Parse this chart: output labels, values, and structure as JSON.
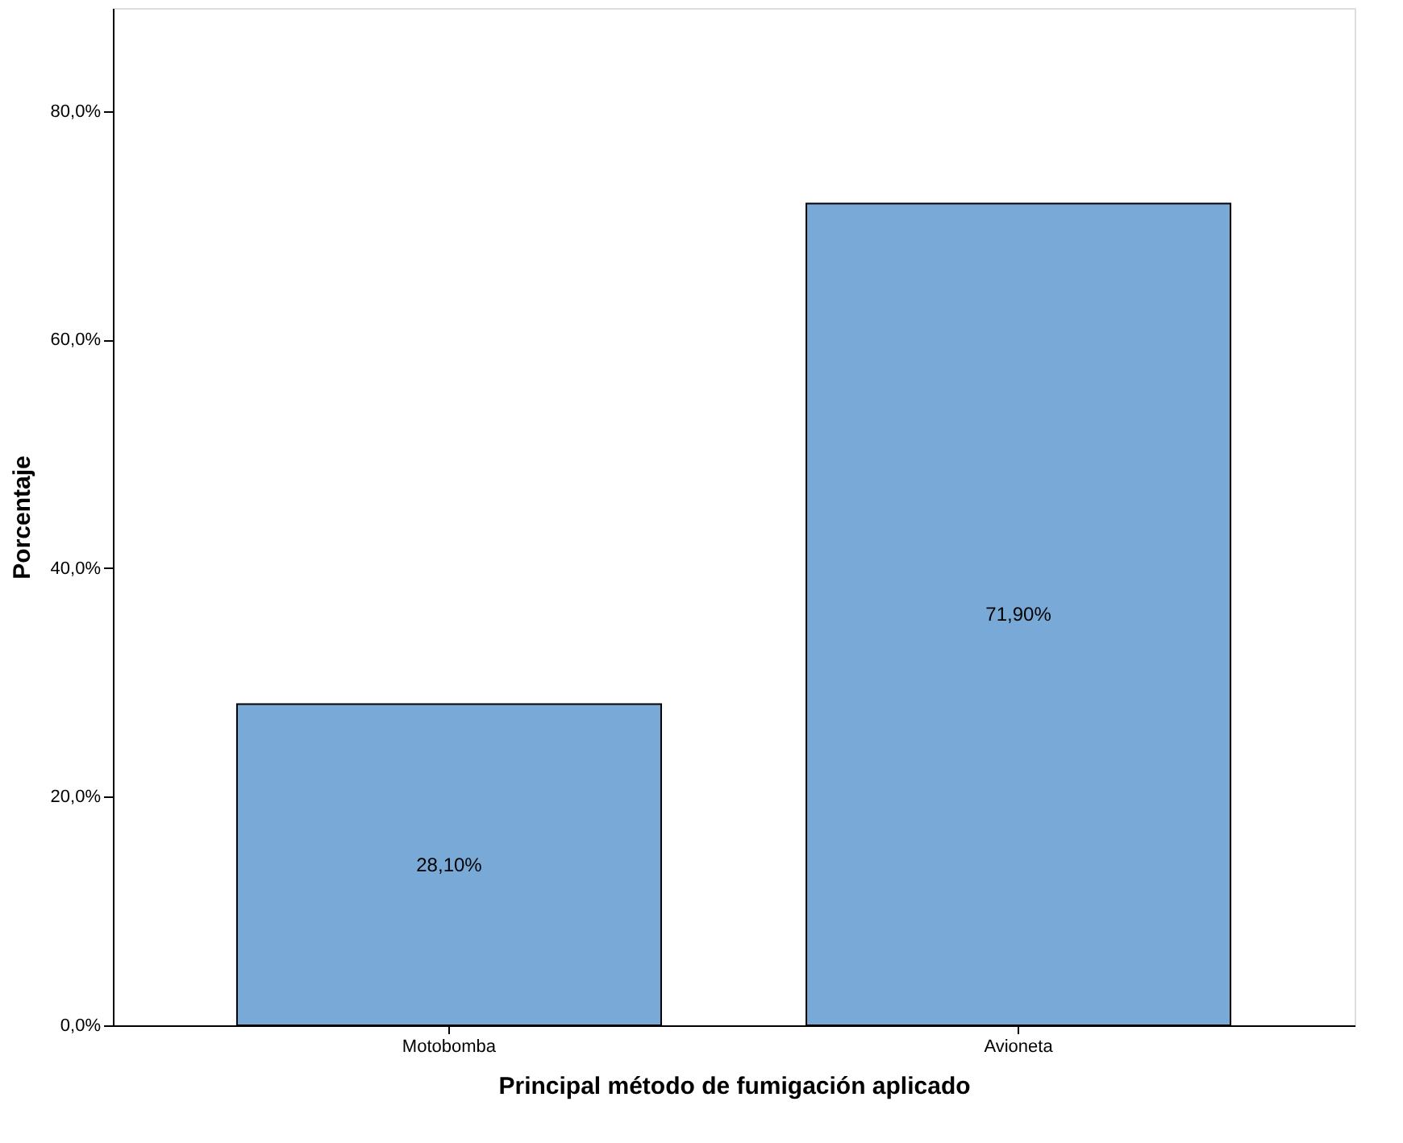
{
  "chart_data": {
    "type": "bar",
    "xlabel": "Principal método de fumigación aplicado",
    "ylabel": "Porcentaje",
    "categories": [
      "Motobomba",
      "Avioneta"
    ],
    "values": [
      28.1,
      71.9
    ],
    "color": "#79a9d6",
    "value_labels": [
      "28,10%",
      "71,90%"
    ],
    "ylim": [
      0,
      89
    ],
    "yticks": [
      {
        "value": 0,
        "label": "0,0%"
      },
      {
        "value": 20,
        "label": "20,0%"
      },
      {
        "value": 40,
        "label": "40,0%"
      },
      {
        "value": 60,
        "label": "60,0%"
      },
      {
        "value": 80,
        "label": "80,0%"
      }
    ],
    "grid": false
  }
}
